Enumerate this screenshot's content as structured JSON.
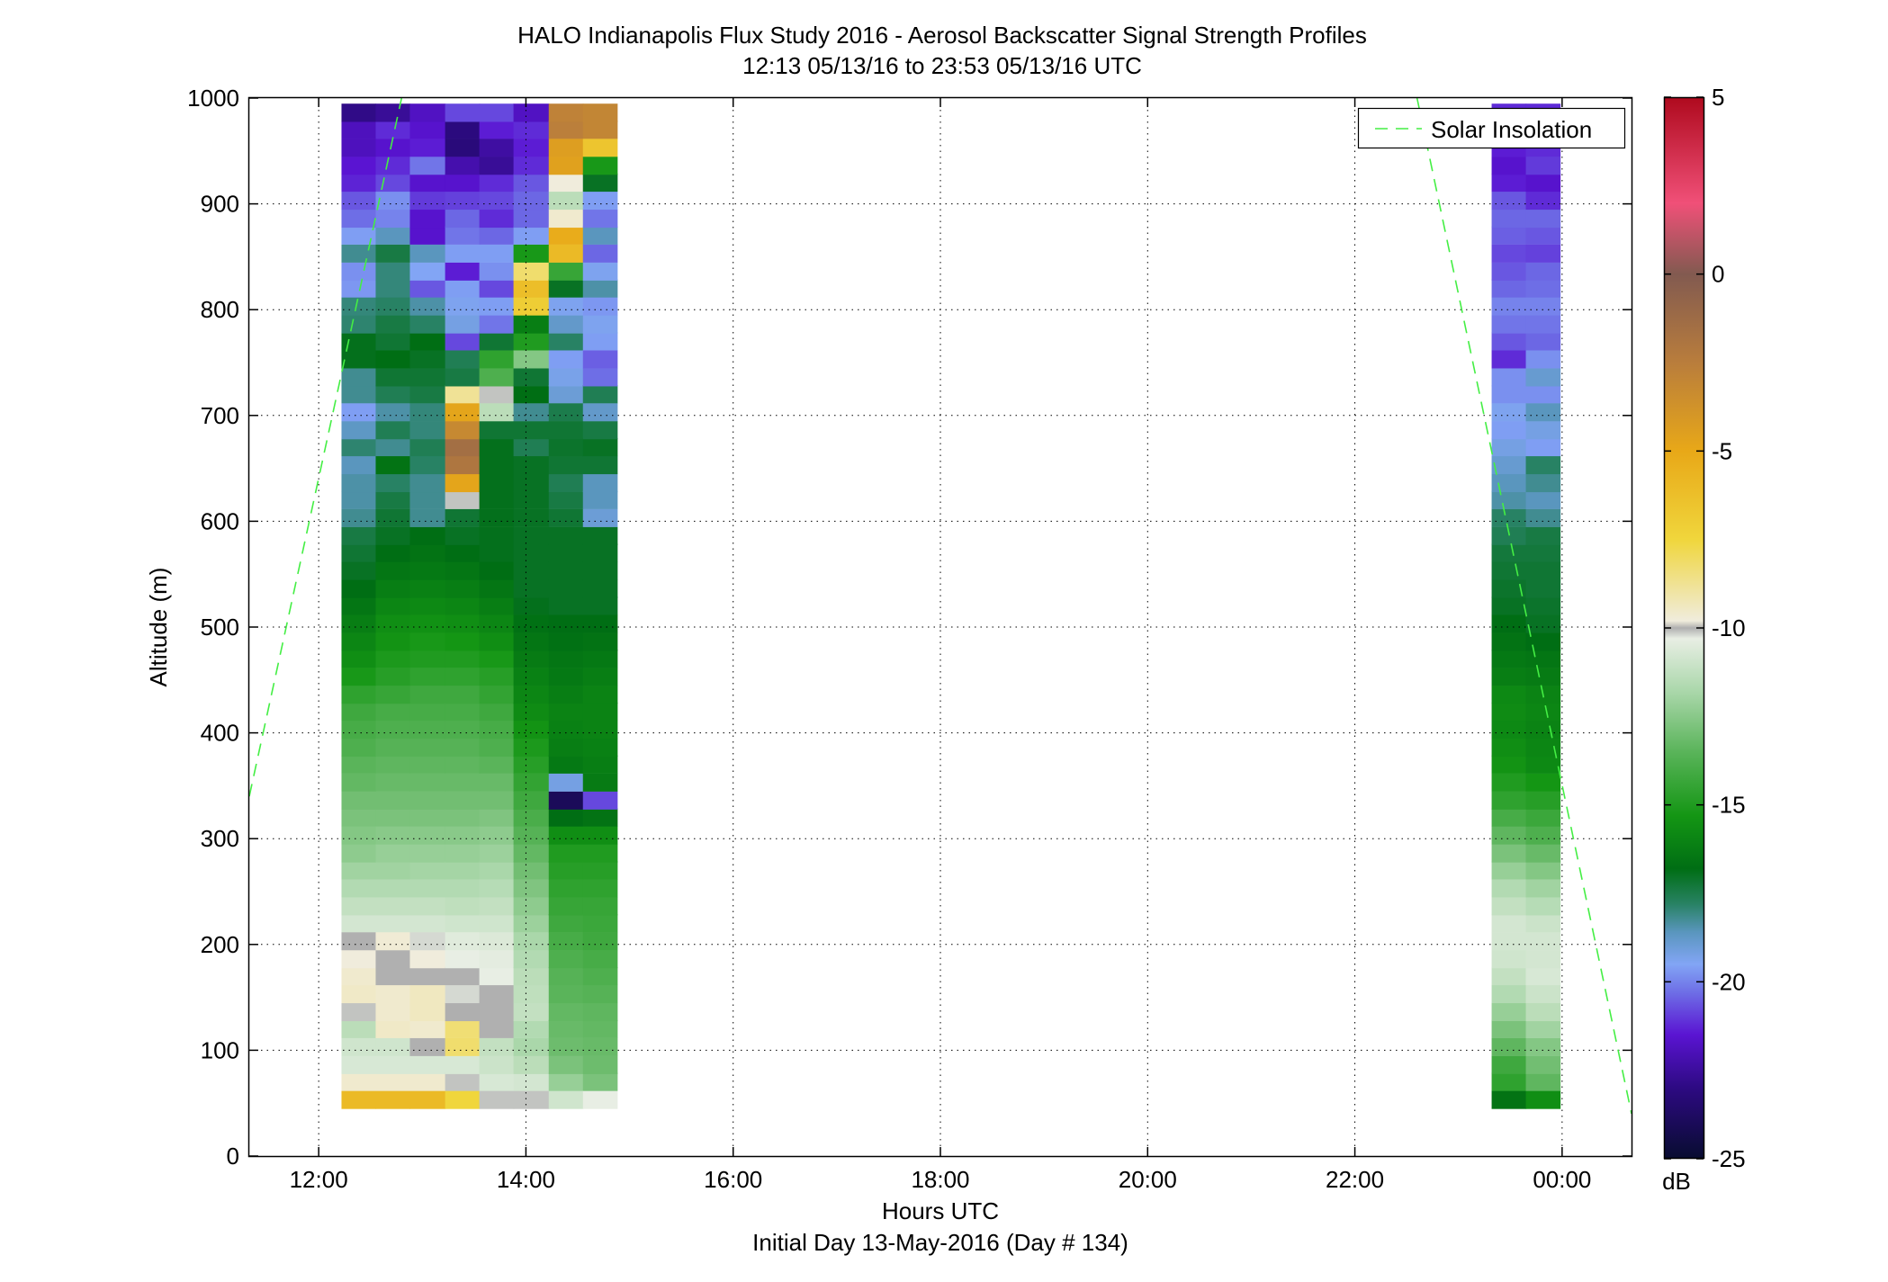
{
  "chart_data": {
    "type": "heatmap",
    "title": "HALO Indianapolis Flux Study 2016 - Aerosol Backscatter Signal Strength Profiles",
    "subtitle": "12:13 05/13/16 to 23:53 05/13/16  UTC",
    "xlabel": "Hours UTC",
    "footer": "Initial Day 13-May-2016 (Day # 134)",
    "ylabel": "Altitude (m)",
    "x_unit_note": "hours UTC; values above 24 are after midnight",
    "xlim": [
      11.33,
      24.67
    ],
    "ylim": [
      0,
      1000
    ],
    "x_ticks": [
      12,
      14,
      16,
      18,
      20,
      22,
      24
    ],
    "x_tick_labels": [
      "12:00",
      "14:00",
      "16:00",
      "18:00",
      "20:00",
      "22:00",
      "00:00"
    ],
    "y_ticks": [
      0,
      100,
      200,
      300,
      400,
      500,
      600,
      700,
      800,
      900,
      1000
    ],
    "y_tick_labels": [
      "0",
      "100",
      "200",
      "300",
      "400",
      "500",
      "600",
      "700",
      "800",
      "900",
      "1000"
    ],
    "grid": true,
    "colorbar": {
      "label": "dB",
      "range": [
        -25,
        5
      ],
      "ticks": [
        5,
        0,
        -5,
        -10,
        -15,
        -20,
        -25
      ],
      "tick_labels": [
        "5",
        "0",
        "-5",
        "-10",
        "-15",
        "-20",
        "-25"
      ],
      "missing_color": "#b0b0b0"
    },
    "legend": {
      "position": "top-right",
      "entries": [
        {
          "name": "Solar Insolation",
          "color": "#44ee44",
          "style": "dashed"
        }
      ]
    },
    "altitude_bins_bottom_m": [
      45,
      62,
      78,
      95,
      112,
      128,
      145,
      162,
      178,
      195,
      212,
      228,
      245,
      262,
      278,
      295,
      312,
      328,
      345,
      362,
      378,
      395,
      412,
      428,
      445,
      462,
      478,
      495,
      512,
      528,
      545,
      562,
      578,
      595,
      612,
      628,
      645,
      662,
      678,
      695,
      712,
      728,
      745,
      762,
      778,
      795,
      812,
      828,
      845,
      862,
      878,
      895,
      912,
      928,
      945,
      962,
      978
    ],
    "bin_height_m": 16.7,
    "profiles": [
      {
        "start": 12.22,
        "end": 12.55,
        "values": [
          -6,
          -9.6,
          -10.7,
          -10.9,
          -11.4,
          -10.1,
          -9.5,
          -9.6,
          -9.8,
          "NaN",
          -10.8,
          -11.2,
          -11.6,
          -12,
          -12.4,
          -12.6,
          -12.8,
          -13,
          -13.3,
          -13.5,
          -13.8,
          -14,
          -14.2,
          -14.6,
          -15.2,
          -15.6,
          -15.9,
          -16.2,
          -16.5,
          -16.8,
          -17,
          -17.2,
          -17.4,
          -18.2,
          -18.4,
          -18.4,
          -18.6,
          -17.9,
          -18.7,
          -19.6,
          -18.2,
          -18.2,
          -16.9,
          -16.9,
          -17.9,
          -18,
          -19.7,
          -19.8,
          -18.2,
          -19.6,
          -20.3,
          -20.6,
          -21.3,
          -21.5,
          -21.9,
          -21.9,
          -22.9
        ]
      },
      {
        "start": 12.55,
        "end": 12.88,
        "values": [
          -6,
          -9.6,
          -10.7,
          -10.9,
          -9.5,
          -9.6,
          -9.6,
          "NaN",
          "NaN",
          -9.7,
          -10.8,
          -11.2,
          -11.6,
          -12,
          -12.2,
          -12.5,
          -12.8,
          -13,
          -13.2,
          -13.4,
          -13.6,
          -13.8,
          -14,
          -14.4,
          -14.8,
          -15.1,
          -15.4,
          -15.6,
          -15.9,
          -16.2,
          -16.5,
          -16.8,
          -17,
          -17.2,
          -17.4,
          -17.8,
          -16.6,
          -18.2,
          -17.6,
          -18.4,
          -17.6,
          -17.2,
          -16.8,
          -17.2,
          -17.4,
          -17.8,
          -18,
          -18,
          -17.4,
          -18.6,
          -20,
          -19.8,
          -20.8,
          -21.2,
          -21.6,
          -21.2,
          -22.6
        ]
      },
      {
        "start": 12.88,
        "end": 13.22,
        "values": [
          -6,
          -9.6,
          -10.7,
          "NaN",
          -9.6,
          -9.4,
          -9.4,
          "NaN",
          -9.8,
          -10.2,
          -10.8,
          -11.2,
          -11.6,
          -11.9,
          -12.2,
          -12.5,
          -12.8,
          -13,
          -13.2,
          -13.4,
          -13.6,
          -13.8,
          -14,
          -14.2,
          -14.6,
          -15,
          -15.2,
          -15.5,
          -15.8,
          -16.1,
          -16.4,
          -16.6,
          -16.8,
          -18.2,
          -18.2,
          -18.2,
          -17.8,
          -17.6,
          -18,
          -18,
          -17.4,
          -17.2,
          -17,
          -16.8,
          -17.8,
          -18.4,
          -20.6,
          -19.5,
          -18.6,
          -21.6,
          -21.6,
          -21,
          -21.6,
          -20.2,
          -21.4,
          -21.6,
          -21.8
        ]
      },
      {
        "start": 13.22,
        "end": 13.55,
        "values": [
          -7.5,
          -10.1,
          -10.7,
          -8.2,
          -8.3,
          -10,
          -10.2,
          "NaN",
          -10.3,
          -10.5,
          -10.9,
          -11.3,
          -11.6,
          -11.9,
          -12.2,
          -12.5,
          -12.8,
          -13,
          -13.2,
          -13.4,
          -13.6,
          -13.8,
          -14,
          -14.2,
          -14.6,
          -15,
          -15.3,
          -15.6,
          -15.9,
          -16.2,
          -16.5,
          -16.8,
          -17,
          -17.2,
          -10.1,
          -4.8,
          -2,
          -1.5,
          -3.2,
          -4.8,
          -8.8,
          -17.4,
          -17.6,
          -20.8,
          -19.2,
          -19.4,
          -19.6,
          -21.4,
          -19.6,
          -20.2,
          -20.4,
          -20.9,
          -21.6,
          -22.2,
          -23.2,
          -23.1,
          -20.8
        ]
      },
      {
        "start": 13.55,
        "end": 13.88,
        "values": [
          -10.1,
          -10.7,
          -11,
          -11.2,
          "NaN",
          "NaN",
          "NaN",
          -10.3,
          -10.4,
          -10.6,
          -10.9,
          -11.2,
          -11.5,
          -11.8,
          -12.1,
          -12.4,
          -12.7,
          -13,
          -13.2,
          -13.5,
          -13.8,
          -14,
          -14.2,
          -14.5,
          -14.8,
          -15.2,
          -15.6,
          -15.9,
          -16.2,
          -16.5,
          -16.8,
          -16.9,
          -16.9,
          -16.9,
          -16.9,
          -16.9,
          -16.9,
          -16.9,
          -17.2,
          -11.4,
          -10.1,
          -13.8,
          -14.6,
          -17.2,
          -20.2,
          -19.6,
          -20.8,
          -19.8,
          -19.6,
          -20.4,
          -21.2,
          -20.8,
          -21.2,
          -22.6,
          -22.4,
          -21.4,
          -20.8
        ]
      },
      {
        "start": 13.88,
        "end": 14.22,
        "values": [
          -10.1,
          -10.8,
          -11.4,
          -11.8,
          -11.6,
          -11.2,
          -11.3,
          -11.4,
          -11.6,
          -11.8,
          -12.1,
          -12.4,
          -12.7,
          -13,
          -13.3,
          -13.6,
          -13.9,
          -14.2,
          -14.5,
          -14.8,
          -15.1,
          -15.4,
          -15.7,
          -15.9,
          -16.1,
          -16.3,
          -16.5,
          -16.7,
          -16.9,
          -17,
          -17,
          -17,
          -17,
          -17,
          -17,
          -17,
          -17,
          -17.6,
          -17.2,
          -18.2,
          -16.8,
          -17.2,
          -12.6,
          -15,
          -16.2,
          -7,
          -6.2,
          -8.2,
          -15.2,
          -19.6,
          -20.4,
          -20.4,
          -20.6,
          -21.2,
          -21.4,
          -21.2,
          -21.8
        ]
      },
      {
        "start": 14.22,
        "end": 14.55,
        "values": [
          -10.9,
          -12.2,
          -12.8,
          -13.1,
          -13.2,
          -13.3,
          -13.5,
          -13.6,
          -13.8,
          -14,
          -14.2,
          -14.4,
          -14.6,
          -14.8,
          -15,
          -15.6,
          -16.8,
          -24,
          -19.2,
          -16.4,
          -16.2,
          -16.1,
          -16,
          -16.2,
          -16.4,
          -16.5,
          -16.7,
          -16.8,
          -17,
          -17,
          -17,
          -17,
          -17,
          -17.2,
          -17.4,
          -17.6,
          -17.2,
          -17.1,
          -17.2,
          -17.5,
          -19,
          -19.3,
          -19.6,
          -17.8,
          -18.8,
          -19.4,
          -17,
          -14.4,
          -6,
          -5.2,
          -9.6,
          -11.4,
          -9.8,
          -4.6,
          -4.4,
          -2.6,
          -2.8
        ]
      },
      {
        "start": 14.55,
        "end": 14.88,
        "values": [
          -10.3,
          -12.8,
          -13.1,
          -13.2,
          -13.3,
          -13.4,
          -13.6,
          -13.8,
          -14,
          -14.2,
          -14.3,
          -14.4,
          -14.6,
          -14.8,
          -15,
          -15.6,
          -16.6,
          -20.8,
          -16.3,
          -16.2,
          -16.1,
          -16,
          -16,
          -16,
          -16.2,
          -16.4,
          -16.6,
          -16.8,
          -17,
          -17,
          -17,
          -17,
          -17,
          -19,
          -18.6,
          -18.6,
          -17.2,
          -17,
          -17.4,
          -18.8,
          -17.6,
          -20.3,
          -20.5,
          -19.6,
          -19.4,
          -19.7,
          -18.4,
          -19.4,
          -20.4,
          -18.6,
          -20.2,
          -19.6,
          -17,
          -15.2,
          -6.6,
          -3,
          -3
        ]
      },
      {
        "start": 23.32,
        "end": 23.65,
        "values": [
          -16.6,
          -14.6,
          -14.2,
          -13.4,
          -12.8,
          -12.2,
          -11.6,
          -11.2,
          -10.9,
          -10.8,
          -10.8,
          -11.2,
          -11.6,
          -12.2,
          -12.8,
          -13.4,
          -14,
          -14.6,
          -15,
          -15.4,
          -15.6,
          -15.8,
          -15.7,
          -15.8,
          -16.2,
          -16.4,
          -16.6,
          -16.8,
          -17,
          -17.1,
          -17.2,
          -17.3,
          -17.6,
          -17.8,
          -18.4,
          -18.6,
          -18.9,
          -19.2,
          -19.6,
          -19.4,
          -19.8,
          -19.8,
          -21.2,
          -20.6,
          -20.2,
          -20,
          -20.4,
          -20.6,
          -20.8,
          -20.5,
          -20.4,
          -20.6,
          -21.4,
          -21.6,
          -21.4,
          -21.2,
          -21.2
        ]
      },
      {
        "start": 23.65,
        "end": 23.98,
        "values": [
          -15.6,
          -13.4,
          -13,
          -12.6,
          -12,
          -11.4,
          -11,
          -10.7,
          -10.8,
          -10.8,
          -11,
          -11.5,
          -12,
          -12.6,
          -13.2,
          -13.8,
          -14.3,
          -14.8,
          -15.3,
          -15.8,
          -15.9,
          -16,
          -15.9,
          -16,
          -16.3,
          -16.5,
          -16.8,
          -17,
          -17.1,
          -17.2,
          -17.2,
          -17.3,
          -17.4,
          -18.2,
          -18.6,
          -18.2,
          -17.8,
          -19.6,
          -19.2,
          -18.6,
          -19.8,
          -18.9,
          -19.8,
          -20.4,
          -20.2,
          -20,
          -20.3,
          -20.4,
          -20.9,
          -20.6,
          -20.4,
          -21.2,
          -21.6,
          -21,
          -21.2,
          -21.6,
          -21.2
        ]
      }
    ],
    "solar_insolation_lines": [
      {
        "x": [
          11.33,
          12.8
        ],
        "y": [
          340,
          1000
        ]
      },
      {
        "x": [
          22.6,
          24.67
        ],
        "y": [
          1000,
          40
        ]
      }
    ]
  }
}
